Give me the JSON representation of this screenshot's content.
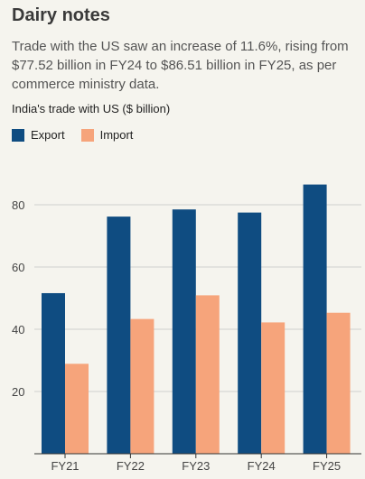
{
  "header": {
    "title": "Dairy notes",
    "subtitle": "Trade with the US saw an increase of 11.6%, rising from $77.52 billion in FY24 to $86.51 billion in FY25, as per commerce ministry data.",
    "caption": "India's trade with US ($ billion)"
  },
  "colors": {
    "export": "#0f4c81",
    "import": "#f6a47b",
    "background": "#f5f4ee",
    "gridline": "#cfcfcf",
    "axis": "#333333"
  },
  "chart_data": {
    "type": "bar",
    "title": "",
    "xlabel": "",
    "ylabel": "",
    "categories": [
      "FY21",
      "FY22",
      "FY23",
      "FY24",
      "FY25"
    ],
    "series": [
      {
        "name": "Export",
        "values": [
          51.6,
          76.2,
          78.5,
          77.5,
          86.5
        ]
      },
      {
        "name": "Import",
        "values": [
          28.9,
          43.3,
          50.9,
          42.2,
          45.3
        ]
      }
    ],
    "yticks": [
      "20",
      "40",
      "60",
      "80"
    ],
    "ylim": [
      0,
      100
    ],
    "grid": true,
    "legend": "top-left"
  }
}
